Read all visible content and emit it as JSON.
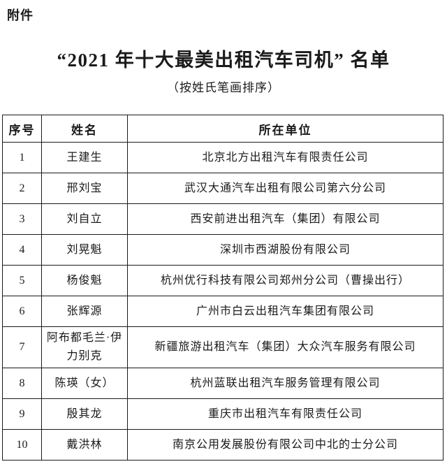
{
  "attachment_label": "附件",
  "title": "“2021 年十大最美出租汽车司机” 名单",
  "subtitle": "（按姓氏笔画排序）",
  "table": {
    "headers": [
      "序号",
      "姓名",
      "所在单位"
    ],
    "rows": [
      {
        "no": "1",
        "name": "王建生",
        "unit": "北京北方出租汽车有限责任公司"
      },
      {
        "no": "2",
        "name": "邢刘宝",
        "unit": "武汉大通汽车出租有限公司第六分公司"
      },
      {
        "no": "3",
        "name": "刘自立",
        "unit": "西安前进出租汽车（集团）有限公司"
      },
      {
        "no": "4",
        "name": "刘晃魁",
        "unit": "深圳市西湖股份有限公司"
      },
      {
        "no": "5",
        "name": "杨俊魁",
        "unit": "杭州优行科技有限公司郑州分公司（曹操出行）"
      },
      {
        "no": "6",
        "name": "张辉源",
        "unit": "广州市白云出租汽车集团有限公司"
      },
      {
        "no": "7",
        "name": "阿布都毛兰·伊力别克",
        "unit": "新疆旅游出租汽车（集团）大众汽车服务有限公司"
      },
      {
        "no": "8",
        "name": "陈瑛（女）",
        "unit": "杭州蓝联出租汽车服务管理有限公司"
      },
      {
        "no": "9",
        "name": "殷其龙",
        "unit": "重庆市出租汽车有限责任公司"
      },
      {
        "no": "10",
        "name": "戴洪林",
        "unit": "南京公用发展股份有限公司中北的士分公司"
      }
    ]
  }
}
